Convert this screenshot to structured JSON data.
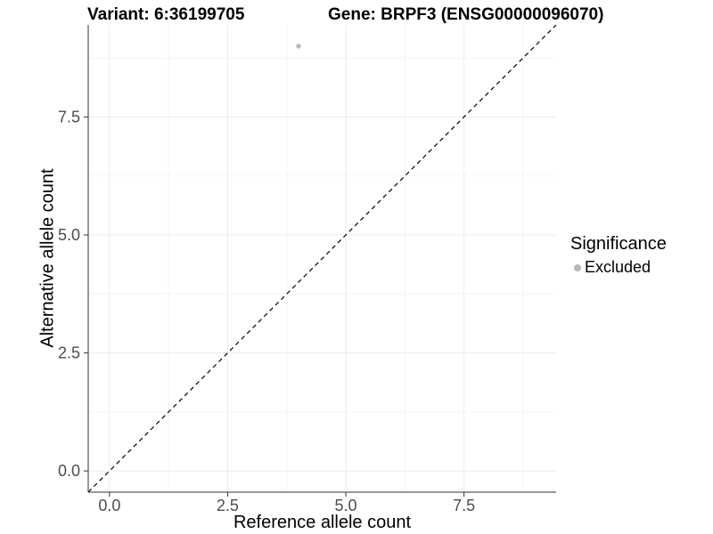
{
  "chart_data": {
    "type": "scatter",
    "title_left": "Variant: 6:36199705",
    "title_right": "Gene: BRPF3 (ENSG00000096070)",
    "xlabel": "Reference allele count",
    "ylabel": "Alternative allele count",
    "xlim": [
      -0.45,
      9.45
    ],
    "ylim": [
      -0.45,
      9.45
    ],
    "x_ticks": {
      "values": [
        0,
        2.5,
        5,
        7.5
      ],
      "labels": [
        "0.0",
        "2.5",
        "5.0",
        "7.5"
      ]
    },
    "y_ticks": {
      "values": [
        0,
        2.5,
        5,
        7.5
      ],
      "labels": [
        "0.0",
        "2.5",
        "5.0",
        "7.5"
      ]
    },
    "minor_ticks": [
      1.25,
      3.75,
      6.25,
      8.75
    ],
    "grid": true,
    "reference_line": {
      "type": "identity",
      "slope": 1,
      "intercept": 0,
      "style": "dashed",
      "color": "#000000"
    },
    "series": [
      {
        "name": "Excluded",
        "color": "#b8b8b8",
        "points": [
          {
            "x": 4,
            "y": 9
          }
        ]
      }
    ],
    "legend": {
      "title": "Significance",
      "position": "right",
      "entries": [
        {
          "label": "Excluded",
          "color": "#b8b8b8",
          "marker": "dot"
        }
      ]
    },
    "style": {
      "grid_major_color": "#ececec",
      "grid_minor_color": "#f5f5f5",
      "axis_line_color": "#333333",
      "tick_color": "#333333",
      "tick_label_color": "#4d4d4d",
      "point_radius": 2.7
    }
  }
}
